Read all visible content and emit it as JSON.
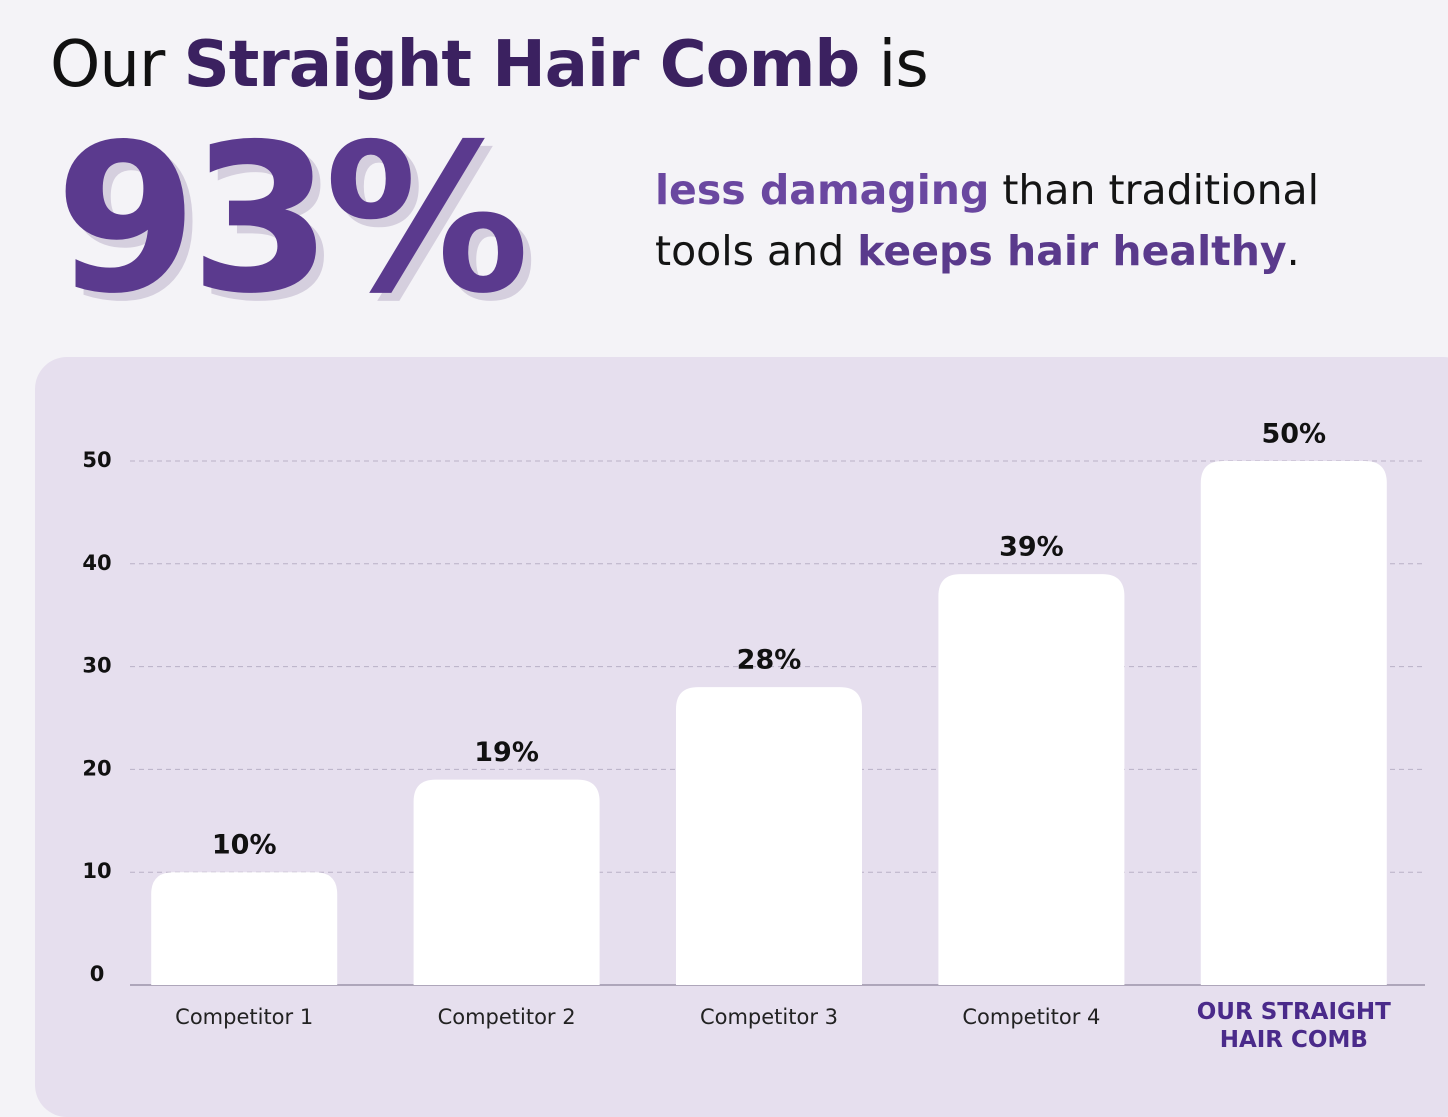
{
  "header": {
    "title_start": "Our",
    "title_emphasis": "Straight Hair Comb",
    "title_end": "is",
    "big_stat": "93%",
    "subtitle": [
      "less damaging",
      "than traditional",
      "tools and",
      "keeps hair healthy",
      "."
    ]
  },
  "chart_data": {
    "type": "bar",
    "categories": [
      "Competitor 1",
      "Competitor 2",
      "Competitor 3",
      "Competitor 4",
      "OUR STRAIGHT HAIR COMB"
    ],
    "values": [
      10,
      19,
      28,
      39,
      50
    ],
    "value_labels": [
      "10%",
      "19%",
      "28%",
      "39%",
      "50%"
    ],
    "color": "#ffffff",
    "ylim": [
      0,
      50
    ],
    "yticks": [
      0,
      10,
      20,
      30,
      40,
      50
    ],
    "grid": true
  }
}
